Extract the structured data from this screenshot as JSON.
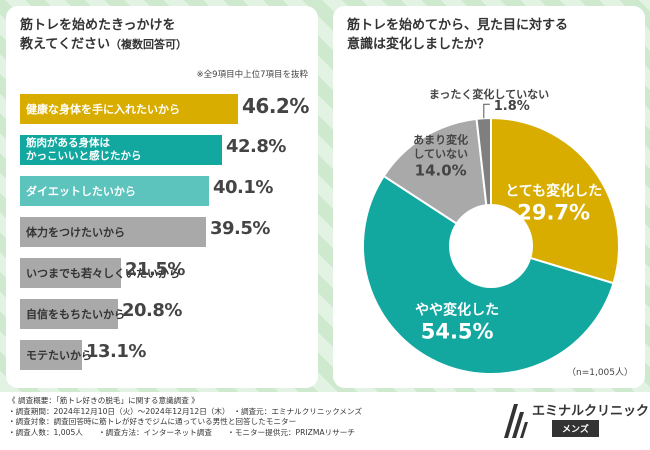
{
  "left": {
    "title_line1": "筋トレを始めたきっかけを",
    "title_line2": "教えてください",
    "title_suffix": "（複数回答可）",
    "note": "※全9項目中上位7項目を抜粋"
  },
  "right": {
    "title_line1": "筋トレを始めてから、見た目に対する",
    "title_line2": "意識は変化しましたか？",
    "sample": "（n=1,005人）"
  },
  "colors": {
    "yellow": "#d9ad00",
    "teal": "#12a79f",
    "lightteal": "#5cc3bd",
    "gray": "#a9a9a9"
  },
  "chart_data": [
    {
      "type": "bar",
      "orientation": "horizontal",
      "categories": [
        "健康な身体を手に入れたいから",
        "筋肉がある身体はかっこいいと感じたから",
        "ダイエットしたいから",
        "体力をつけたいから",
        "いつまでも若々しくいたいから",
        "自信をもちたいから",
        "モテたいから"
      ],
      "label_lines": [
        [
          "健康な身体を手に入れたいから"
        ],
        [
          "筋肉がある身体は",
          "かっこいいと感じたから"
        ],
        [
          "ダイエットしたいから"
        ],
        [
          "体力をつけたいから"
        ],
        [
          "いつまでも若々しくいたいから"
        ],
        [
          "自信をもちたいから"
        ],
        [
          "モテたいから"
        ]
      ],
      "values": [
        46.2,
        42.8,
        40.1,
        39.5,
        21.5,
        20.8,
        13.1
      ],
      "value_labels": [
        "46.2%",
        "42.8%",
        "40.1%",
        "39.5%",
        "21.5%",
        "20.8%",
        "13.1%"
      ],
      "bar_colors": [
        "#d9ad00",
        "#12a79f",
        "#5cc3bd",
        "#a9a9a9",
        "#a9a9a9",
        "#a9a9a9",
        "#a9a9a9"
      ],
      "unit": "%"
    },
    {
      "type": "pie",
      "labels": [
        "とても変化した",
        "やや変化した",
        "あまり変化していない",
        "まったく変化していない"
      ],
      "label_lines": [
        [
          "とても変化した"
        ],
        [
          "やや変化した"
        ],
        [
          "あまり変化",
          "していない"
        ],
        [
          "まったく変化していない"
        ]
      ],
      "values": [
        29.7,
        54.5,
        14.0,
        1.8
      ],
      "value_labels": [
        "29.7%",
        "54.5%",
        "14.0%",
        "1.8%"
      ],
      "slice_colors": [
        "#d9ad00",
        "#12a79f",
        "#a9a9a9",
        "#7f7f7f"
      ],
      "unit": "%"
    }
  ],
  "footer": {
    "lines": [
      "《 調査概要：「筋トレ好きの脱毛」に関する意識調査 》",
      "・調査期間：2024年12月10日（火）～2024年12月12日（木）　・調査元：エミナルクリニックメンズ",
      "・調査対象：調査回答時に筋トレが好きでジムに通っている男性と回答したモニター",
      "・調査人数：1,005人　　・調査方法：インターネット調査　　・モニター提供元：PRIZMAリサーチ"
    ],
    "logo_name": "エミナルクリニック",
    "logo_sub": "メンズ"
  }
}
